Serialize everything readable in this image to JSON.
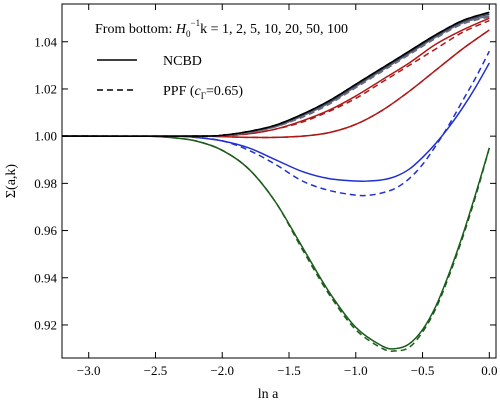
{
  "chart_data": {
    "type": "line",
    "xlabel": "ln a",
    "ylabel": "Σ(a,k)",
    "xlim": [
      -3.2,
      0.05
    ],
    "ylim": [
      0.906,
      1.056
    ],
    "xticks": [
      -3.0,
      -2.5,
      -2.0,
      -1.5,
      -1.0,
      -0.5,
      0.0
    ],
    "xtick_labels": [
      "−3.0",
      "−2.5",
      "−2.0",
      "−1.5",
      "−1.0",
      "−0.5",
      "0.0"
    ],
    "yticks": [
      0.92,
      0.94,
      0.96,
      0.98,
      1.0,
      1.02,
      1.04
    ],
    "ytick_labels": [
      "0.92",
      "0.94",
      "0.96",
      "0.98",
      "1.00",
      "1.02",
      "1.04"
    ],
    "grid": false,
    "legend": {
      "placement": "top-left",
      "title_prefix": "From bottom: ",
      "title_symbol_base": "H",
      "title_symbol_sub": "0",
      "title_symbol_sup": "−1",
      "title_suffix": "k = 1, 2, 5, 10, 20, 50, 100",
      "entries": [
        {
          "label": "NCBD",
          "style": "solid"
        },
        {
          "label_prefix": "PPF (",
          "label_symbol": "c",
          "label_sub": "Γ",
          "label_suffix": "=0.65)",
          "style": "dashed"
        }
      ]
    },
    "series": [
      {
        "k": 1,
        "model": "NCBD",
        "style": "solid",
        "color": "#1a5c1a",
        "x": [
          -3.2,
          -2.6,
          -2.4,
          -2.2,
          -2.0,
          -1.8,
          -1.6,
          -1.4,
          -1.2,
          -1.0,
          -0.8,
          -0.7,
          -0.6,
          -0.5,
          -0.4,
          -0.3,
          -0.2,
          -0.1,
          0.0
        ],
        "y": [
          1.0,
          1.0,
          0.9995,
          0.998,
          0.994,
          0.986,
          0.972,
          0.953,
          0.934,
          0.919,
          0.911,
          0.91,
          0.912,
          0.918,
          0.928,
          0.942,
          0.958,
          0.976,
          0.995
        ]
      },
      {
        "k": 1,
        "model": "PPF",
        "style": "dashed",
        "color": "#1a5c1a",
        "x": [
          -3.2,
          -2.6,
          -2.4,
          -2.2,
          -2.0,
          -1.8,
          -1.6,
          -1.4,
          -1.2,
          -1.0,
          -0.8,
          -0.7,
          -0.6,
          -0.5,
          -0.4,
          -0.3,
          -0.2,
          -0.1,
          0.0
        ],
        "y": [
          1.0,
          1.0,
          0.9995,
          0.998,
          0.994,
          0.986,
          0.972,
          0.952,
          0.933,
          0.918,
          0.91,
          0.909,
          0.9105,
          0.917,
          0.927,
          0.941,
          0.957,
          0.975,
          0.995
        ]
      },
      {
        "k": 2,
        "model": "NCBD",
        "style": "solid",
        "color": "#1f2fd0",
        "x": [
          -3.2,
          -2.4,
          -2.2,
          -2.0,
          -1.8,
          -1.6,
          -1.4,
          -1.2,
          -1.0,
          -0.9,
          -0.8,
          -0.7,
          -0.6,
          -0.5,
          -0.4,
          -0.3,
          -0.2,
          -0.1,
          0.0
        ],
        "y": [
          1.0,
          1.0,
          0.9995,
          0.998,
          0.995,
          0.99,
          0.985,
          0.982,
          0.981,
          0.981,
          0.9815,
          0.983,
          0.986,
          0.991,
          0.997,
          1.004,
          1.012,
          1.021,
          1.031
        ]
      },
      {
        "k": 2,
        "model": "PPF",
        "style": "dashed",
        "color": "#1f2fd0",
        "x": [
          -3.2,
          -2.4,
          -2.2,
          -2.0,
          -1.8,
          -1.6,
          -1.4,
          -1.2,
          -1.0,
          -0.9,
          -0.8,
          -0.7,
          -0.6,
          -0.5,
          -0.4,
          -0.3,
          -0.2,
          -0.1,
          0.0
        ],
        "y": [
          1.0,
          1.0,
          0.9995,
          0.998,
          0.994,
          0.988,
          0.981,
          0.977,
          0.975,
          0.975,
          0.976,
          0.978,
          0.982,
          0.988,
          0.996,
          1.005,
          1.015,
          1.025,
          1.036
        ]
      },
      {
        "k": 5,
        "model": "NCBD",
        "style": "solid",
        "color": "#b01818",
        "x": [
          -3.2,
          -2.2,
          -2.0,
          -1.8,
          -1.6,
          -1.4,
          -1.2,
          -1.0,
          -0.8,
          -0.6,
          -0.4,
          -0.2,
          0.0
        ],
        "y": [
          1.0,
          1.0,
          0.9998,
          0.9995,
          0.9995,
          1.0,
          1.0015,
          1.005,
          1.011,
          1.019,
          1.028,
          1.037,
          1.045
        ]
      },
      {
        "k": 5,
        "model": "PPF",
        "style": "dashed",
        "color": "#b01818",
        "x": [
          -3.2,
          -2.2,
          -2.0,
          -1.8,
          -1.6,
          -1.4,
          -1.2,
          -1.0,
          -0.8,
          -0.6,
          -0.4,
          -0.2,
          0.0
        ],
        "y": [
          1.0,
          1.0,
          0.9998,
          0.9995,
          0.9995,
          1.0,
          1.0015,
          1.005,
          1.011,
          1.019,
          1.028,
          1.037,
          1.045
        ]
      },
      {
        "k": 10,
        "model": "NCBD",
        "style": "solid",
        "color": "#b01818",
        "x": [
          -3.2,
          -2.2,
          -2.0,
          -1.8,
          -1.6,
          -1.4,
          -1.2,
          -1.0,
          -0.8,
          -0.6,
          -0.4,
          -0.2,
          0.0
        ],
        "y": [
          1.0,
          1.0,
          1.0002,
          1.001,
          1.003,
          1.0065,
          1.011,
          1.017,
          1.024,
          1.031,
          1.039,
          1.045,
          1.05
        ]
      },
      {
        "k": 10,
        "model": "PPF",
        "style": "dashed",
        "color": "#b01818",
        "x": [
          -3.2,
          -2.2,
          -2.0,
          -1.8,
          -1.6,
          -1.4,
          -1.2,
          -1.0,
          -0.8,
          -0.6,
          -0.4,
          -0.2,
          0.0
        ],
        "y": [
          1.0,
          1.0,
          1.0002,
          1.001,
          1.003,
          1.006,
          1.0105,
          1.016,
          1.023,
          1.03,
          1.037,
          1.044,
          1.049
        ]
      },
      {
        "k": 20,
        "model": "NCBD",
        "style": "solid",
        "color": "#6a6a78",
        "x": [
          -3.2,
          -2.2,
          -2.0,
          -1.8,
          -1.6,
          -1.4,
          -1.2,
          -1.0,
          -0.8,
          -0.6,
          -0.4,
          -0.2,
          0.0
        ],
        "y": [
          1.0,
          1.0,
          1.0003,
          1.0015,
          1.004,
          1.0085,
          1.014,
          1.021,
          1.028,
          1.035,
          1.042,
          1.048,
          1.051
        ]
      },
      {
        "k": 20,
        "model": "PPF",
        "style": "dashed",
        "color": "#6a6a78",
        "x": [
          -3.2,
          -2.2,
          -2.0,
          -1.8,
          -1.6,
          -1.4,
          -1.2,
          -1.0,
          -0.8,
          -0.6,
          -0.4,
          -0.2,
          0.0
        ],
        "y": [
          1.0,
          1.0,
          1.0003,
          1.0015,
          1.004,
          1.008,
          1.0135,
          1.0205,
          1.0275,
          1.0345,
          1.0415,
          1.0475,
          1.0505
        ]
      },
      {
        "k": 50,
        "model": "NCBD",
        "style": "solid",
        "color": "#3a4a6a",
        "x": [
          -3.2,
          -2.2,
          -2.0,
          -1.8,
          -1.6,
          -1.4,
          -1.2,
          -1.0,
          -0.8,
          -0.6,
          -0.4,
          -0.2,
          0.0
        ],
        "y": [
          1.0,
          1.0,
          1.0004,
          1.002,
          1.0045,
          1.009,
          1.0145,
          1.0215,
          1.0285,
          1.0355,
          1.0425,
          1.0485,
          1.0518
        ]
      },
      {
        "k": 50,
        "model": "PPF",
        "style": "dashed",
        "color": "#3a4a6a",
        "x": [
          -3.2,
          -2.2,
          -2.0,
          -1.8,
          -1.6,
          -1.4,
          -1.2,
          -1.0,
          -0.8,
          -0.6,
          -0.4,
          -0.2,
          0.0
        ],
        "y": [
          1.0,
          1.0,
          1.0004,
          1.002,
          1.0045,
          1.009,
          1.0145,
          1.0215,
          1.0285,
          1.0355,
          1.0425,
          1.0485,
          1.0518
        ]
      },
      {
        "k": 100,
        "model": "NCBD",
        "style": "solid",
        "color": "#000000",
        "x": [
          -3.2,
          -2.2,
          -2.0,
          -1.8,
          -1.6,
          -1.4,
          -1.2,
          -1.0,
          -0.8,
          -0.6,
          -0.4,
          -0.2,
          0.0
        ],
        "y": [
          1.0,
          1.0,
          1.0004,
          1.002,
          1.0047,
          1.0093,
          1.015,
          1.022,
          1.029,
          1.036,
          1.043,
          1.049,
          1.0525
        ]
      },
      {
        "k": 100,
        "model": "PPF",
        "style": "dashed",
        "color": "#000000",
        "x": [
          -3.2,
          -2.2,
          -2.0,
          -1.8,
          -1.6,
          -1.4,
          -1.2,
          -1.0,
          -0.8,
          -0.6,
          -0.4,
          -0.2,
          0.0
        ],
        "y": [
          1.0,
          1.0,
          1.0004,
          1.002,
          1.0047,
          1.0093,
          1.015,
          1.022,
          1.029,
          1.036,
          1.043,
          1.049,
          1.0525
        ]
      }
    ]
  }
}
